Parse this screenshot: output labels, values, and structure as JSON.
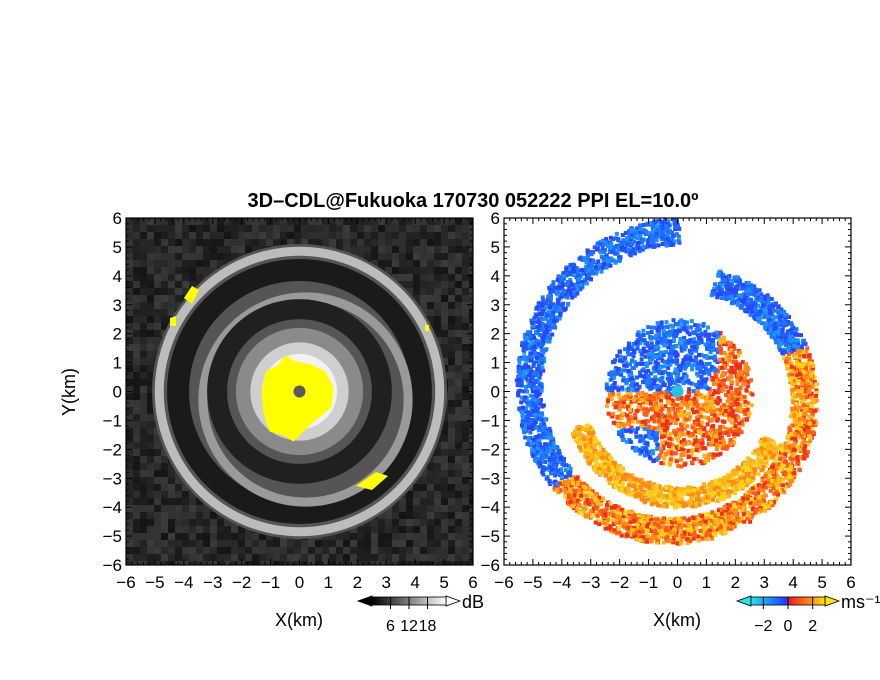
{
  "title": "3D–CDL@Fukuoka 170730 052222 PPI EL=10.0º",
  "chart_data": [
    {
      "type": "heatmap",
      "panel": "left",
      "quantity": "reflectivity (SNR)",
      "xlabel": "X(km)",
      "ylabel": "Y(km)",
      "xlim": [
        -6,
        6
      ],
      "ylim": [
        -6,
        6
      ],
      "xticks": [
        "−6",
        "−5",
        "−4",
        "−3",
        "−2",
        "−1",
        "0",
        "1",
        "2",
        "3",
        "4",
        "5",
        "6"
      ],
      "yticks": [
        "6",
        "5",
        "4",
        "3",
        "2",
        "1",
        "0",
        "−1",
        "−2",
        "−3",
        "−4",
        "−5",
        "−6"
      ],
      "colormap": "gray",
      "colorbar": {
        "unit": "dB",
        "ticks": [
          "6",
          "12",
          "18"
        ],
        "range": [
          0,
          24
        ]
      },
      "saturated_color": "#ffff00",
      "radar_center": [
        0,
        0
      ]
    },
    {
      "type": "heatmap",
      "panel": "right",
      "quantity": "Doppler velocity",
      "xlabel": "X(km)",
      "ylabel": "",
      "xlim": [
        -6,
        6
      ],
      "ylim": [
        -6,
        6
      ],
      "xticks": [
        "−6",
        "−5",
        "−4",
        "−3",
        "−2",
        "−1",
        "0",
        "1",
        "2",
        "3",
        "4",
        "5",
        "6"
      ],
      "yticks": [
        "6",
        "5",
        "4",
        "3",
        "2",
        "1",
        "0",
        "−1",
        "−2",
        "−3",
        "−4",
        "−5",
        "−6"
      ],
      "colormap": "cyan-blue-red-orange-yellow",
      "colorbar": {
        "unit": "ms⁻¹",
        "ticks": [
          "−2",
          "0",
          "2"
        ],
        "range": [
          -3,
          3
        ]
      },
      "radar_center": [
        0,
        0
      ]
    }
  ],
  "colors": {
    "gray_dark": "#141414",
    "gray_light": "#e8e8e8",
    "highlight": "#ffff00",
    "vel_cyan": "#27c3e6",
    "vel_blue": "#1e5cff",
    "vel_red": "#f0301a",
    "vel_orange": "#ff8a1a",
    "vel_yellow": "#ffd21a"
  }
}
